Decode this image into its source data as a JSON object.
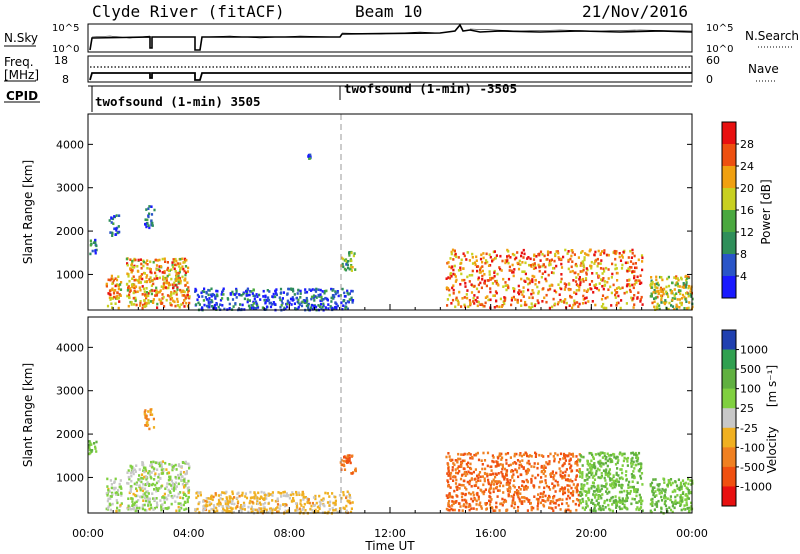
{
  "header": {
    "station": "Clyde River (fitACF)",
    "beam": "Beam 10",
    "date": "21/Nov/2016"
  },
  "nsky_panel": {
    "left_label": "N.Sky",
    "left_ticks": [
      "10^5",
      "10^0"
    ],
    "right_label": "N.Search",
    "right_ticks": [
      "10^5",
      "10^0"
    ]
  },
  "freq_panel": {
    "left_label_top": "Freq.",
    "left_label_bottom": "[MHz]",
    "left_ticks": [
      "18",
      "8"
    ],
    "right_label": "Nave",
    "right_ticks": [
      "60",
      "0"
    ]
  },
  "cpid": {
    "label": "CPID",
    "segments": [
      {
        "label": "twofsound (1-min) 3505",
        "start_hour": 0.25
      },
      {
        "label": "twofsound (1-min) -3505",
        "start_hour": 10.0
      }
    ]
  },
  "power_panel": {
    "ylabel": "Slant Range [km]",
    "yticks": [
      "1000",
      "2000",
      "3000",
      "4000"
    ],
    "colorbar_label": "Power [dB]",
    "colorbar_ticks": [
      "4",
      "8",
      "12",
      "16",
      "20",
      "24",
      "28"
    ],
    "colorbar_colors": [
      "#1a1aff",
      "#2a55c8",
      "#2f8f5a",
      "#4aa83f",
      "#c8d020",
      "#f0a010",
      "#ee5010",
      "#e81010"
    ]
  },
  "velocity_panel": {
    "ylabel": "Slant Range [km]",
    "yticks": [
      "1000",
      "2000",
      "3000",
      "4000"
    ],
    "colorbar_label": "Velocity",
    "colorbar_unit": "[m s⁻¹]",
    "colorbar_ticks": [
      "1000",
      "500",
      "100",
      "25",
      "-25",
      "-100",
      "-500",
      "-1000"
    ],
    "colorbar_colors": [
      "#2040b0",
      "#30a050",
      "#60b040",
      "#80d040",
      "#c8c8c8",
      "#f0b020",
      "#f08020",
      "#f05010",
      "#e81010"
    ]
  },
  "xaxis": {
    "label": "Time UT",
    "ticks": [
      "00:00",
      "04:00",
      "08:00",
      "12:00",
      "16:00",
      "20:00",
      "00:00"
    ]
  },
  "chart_data": {
    "type": "heatmap",
    "title": "Clyde River (fitACF)",
    "xlabel": "Time UT",
    "ylabel": "Slant Range [km]",
    "xlim_hours": [
      0,
      24
    ],
    "ylim_km": [
      180,
      4700
    ],
    "grid": false,
    "power_scale_db": [
      0,
      32
    ],
    "velocity_scale_ms": [
      -1000,
      1000
    ],
    "power_regions": [
      {
        "t0": 0.0,
        "t1": 0.3,
        "r0": 1450,
        "r1": 1900,
        "power_db": 8
      },
      {
        "t0": 0.7,
        "t1": 1.3,
        "r0": 250,
        "r1": 1000,
        "power_db": 22
      },
      {
        "t0": 0.8,
        "t1": 1.2,
        "r0": 1900,
        "r1": 2400,
        "power_db": 6
      },
      {
        "t0": 1.5,
        "t1": 4.0,
        "r0": 250,
        "r1": 1400,
        "power_db": 22
      },
      {
        "t0": 2.2,
        "t1": 2.6,
        "r0": 2100,
        "r1": 2600,
        "power_db": 6
      },
      {
        "t0": 4.2,
        "t1": 10.5,
        "r0": 200,
        "r1": 700,
        "power_db": 6
      },
      {
        "t0": 8.7,
        "t1": 8.8,
        "r0": 3700,
        "r1": 3800,
        "power_db": 6
      },
      {
        "t0": 10.0,
        "t1": 10.6,
        "r0": 1100,
        "r1": 1550,
        "power_db": 14
      },
      {
        "t0": 14.2,
        "t1": 22.0,
        "r0": 250,
        "r1": 1600,
        "power_db": 24
      },
      {
        "t0": 22.3,
        "t1": 24.0,
        "r0": 200,
        "r1": 1000,
        "power_db": 18
      }
    ],
    "velocity_regions": [
      {
        "t0": 0.0,
        "t1": 0.3,
        "r0": 1450,
        "r1": 1900,
        "velocity": 100
      },
      {
        "t0": 0.7,
        "t1": 1.3,
        "r0": 250,
        "r1": 1000,
        "velocity": 25
      },
      {
        "t0": 1.5,
        "t1": 4.0,
        "r0": 250,
        "r1": 1400,
        "velocity": 25
      },
      {
        "t0": 2.2,
        "t1": 2.6,
        "r0": 2100,
        "r1": 2600,
        "velocity": -100
      },
      {
        "t0": 4.2,
        "t1": 10.5,
        "r0": 200,
        "r1": 700,
        "velocity": -50
      },
      {
        "t0": 10.0,
        "t1": 10.6,
        "r0": 1100,
        "r1": 1550,
        "velocity": -500
      },
      {
        "t0": 14.2,
        "t1": 19.5,
        "r0": 250,
        "r1": 1600,
        "velocity": -500
      },
      {
        "t0": 19.5,
        "t1": 22.0,
        "r0": 250,
        "r1": 1600,
        "velocity": 100
      },
      {
        "t0": 22.3,
        "t1": 24.0,
        "r0": 200,
        "r1": 1000,
        "velocity": 100
      }
    ]
  }
}
